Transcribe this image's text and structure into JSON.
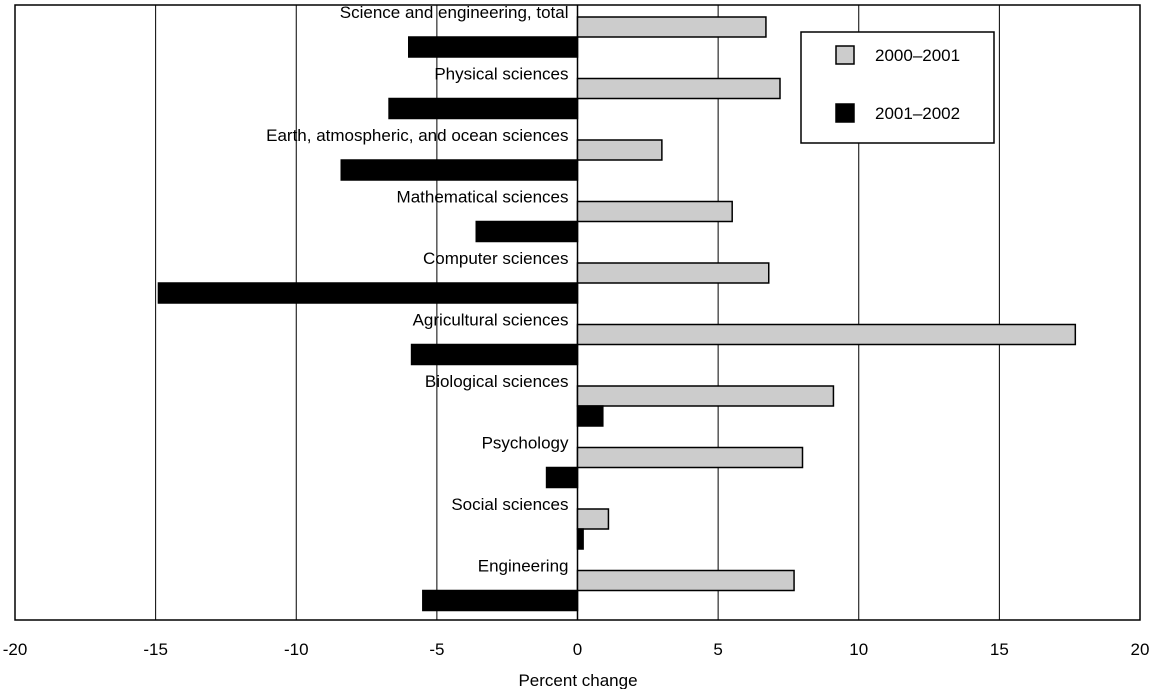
{
  "chart_data": {
    "type": "bar",
    "orientation": "horizontal",
    "xlabel": "Percent change",
    "ylabel": "",
    "xlim": [
      -20,
      20
    ],
    "xticks": [
      -20,
      -15,
      -10,
      -5,
      0,
      5,
      10,
      15,
      20
    ],
    "grid": "vertical",
    "legend_position": "top-right",
    "categories": [
      "Science and engineering, total",
      "Physical sciences",
      "Earth, atmospheric, and ocean sciences",
      "Mathematical sciences",
      "Computer sciences",
      "Agricultural sciences",
      "Biological sciences",
      "Psychology",
      "Social sciences",
      "Engineering"
    ],
    "series": [
      {
        "name": "2000–2001",
        "color": "#cccccc",
        "values": [
          6.7,
          7.2,
          3.0,
          5.5,
          6.8,
          17.7,
          9.1,
          8.0,
          1.1,
          7.7
        ]
      },
      {
        "name": "2001–2002",
        "color": "#000000",
        "values": [
          -6.0,
          -6.7,
          -8.4,
          -3.6,
          -14.9,
          -5.9,
          0.9,
          -1.1,
          0.2,
          -5.5
        ]
      }
    ]
  }
}
